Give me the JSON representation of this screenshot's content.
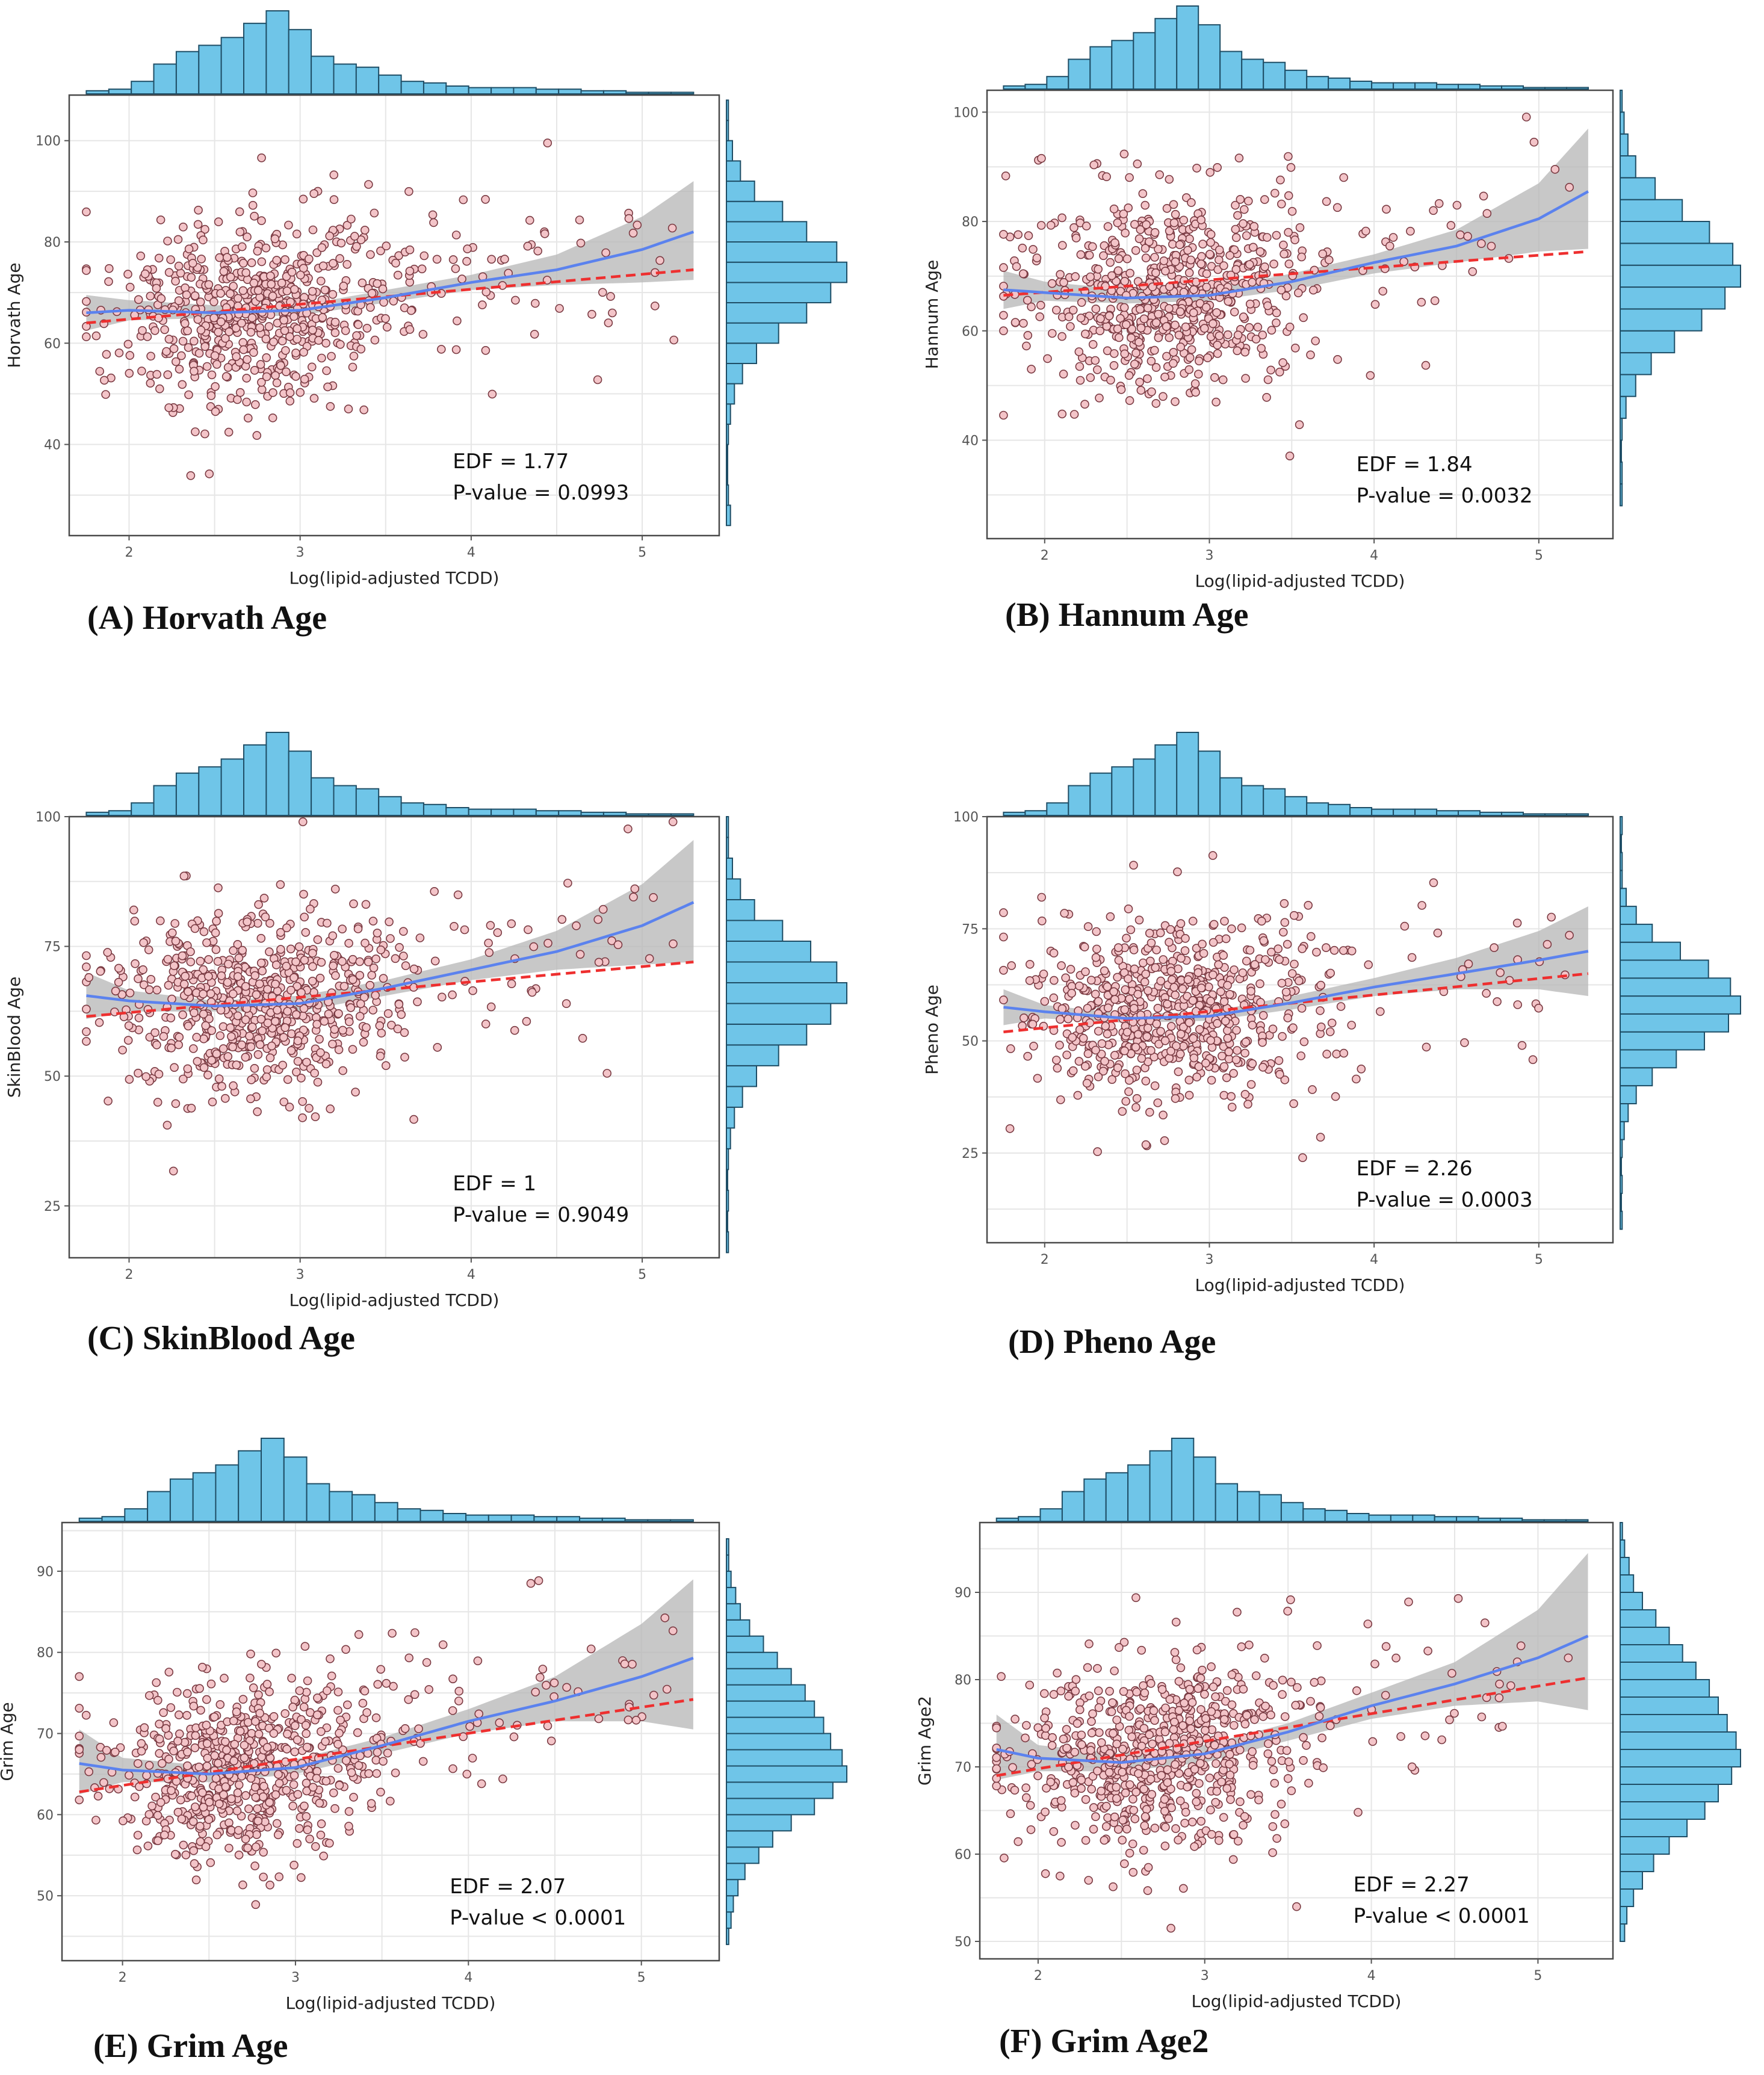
{
  "chart_data": [
    {
      "type": "scatter",
      "panel_title": "(A) Horvath Age",
      "xlabel": "Log(lipid-adjusted TCDD)",
      "ylabel": "Horvath Age",
      "xlim": [
        1.65,
        5.45
      ],
      "ylim": [
        22,
        109
      ],
      "xticks": [
        2,
        3,
        4,
        5
      ],
      "yticks": [
        40,
        60,
        80,
        100
      ],
      "annotation": [
        "EDF = 1.77",
        "P-value = 0.0993"
      ],
      "series": [
        {
          "name": "smooth (blue)",
          "x": [
            1.75,
            2.0,
            2.5,
            3.0,
            3.5,
            4.0,
            4.5,
            5.0,
            5.3
          ],
          "y": [
            66.0,
            66.5,
            66.0,
            66.5,
            69.0,
            72.0,
            74.5,
            78.5,
            82.0
          ]
        },
        {
          "name": "linear (red dashed)",
          "x": [
            1.75,
            5.3
          ],
          "y": [
            64.0,
            74.5
          ]
        },
        {
          "name": "confidence band",
          "x": [
            1.75,
            2.0,
            2.5,
            3.0,
            3.5,
            4.0,
            4.5,
            5.0,
            5.3
          ],
          "lower": [
            62.5,
            64.5,
            65.0,
            65.5,
            68.0,
            70.5,
            71.5,
            72.0,
            72.5
          ],
          "upper": [
            69.5,
            68.5,
            67.5,
            67.5,
            70.5,
            73.5,
            77.5,
            85.0,
            92.0
          ]
        }
      ],
      "x_histogram": [
        2,
        3,
        8,
        19,
        27,
        31,
        36,
        45,
        53,
        41,
        24,
        19,
        17,
        12,
        8,
        7,
        5,
        4,
        4,
        4,
        3,
        3,
        2,
        2,
        1,
        1,
        1
      ],
      "y_histogram": {
        "bins": [
          24,
          28,
          32,
          36,
          40,
          44,
          48,
          52,
          56,
          60,
          64,
          68,
          72,
          76,
          80,
          84,
          88,
          92,
          96,
          100,
          104
        ],
        "counts": [
          2,
          1,
          0,
          0,
          1,
          2,
          4,
          8,
          15,
          26,
          40,
          52,
          60,
          55,
          40,
          28,
          14,
          7,
          3,
          1,
          1
        ]
      }
    },
    {
      "type": "scatter",
      "panel_title": "(B) Hannum Age",
      "xlabel": "Log(lipid-adjusted TCDD)",
      "ylabel": "Hannum Age",
      "xlim": [
        1.65,
        5.45
      ],
      "ylim": [
        22,
        104
      ],
      "xticks": [
        2,
        3,
        4,
        5
      ],
      "yticks": [
        40,
        60,
        80,
        100
      ],
      "annotation": [
        "EDF = 1.84",
        "P-value = 0.0032"
      ],
      "series": [
        {
          "name": "smooth (blue)",
          "x": [
            1.75,
            2.0,
            2.5,
            3.0,
            3.5,
            4.0,
            4.5,
            5.0,
            5.3
          ],
          "y": [
            67.5,
            67.0,
            66.0,
            66.5,
            69.0,
            72.5,
            75.5,
            80.5,
            85.5
          ]
        },
        {
          "name": "linear (red dashed)",
          "x": [
            1.75,
            5.3
          ],
          "y": [
            66.5,
            74.5
          ]
        },
        {
          "name": "confidence band",
          "x": [
            1.75,
            2.0,
            2.5,
            3.0,
            3.5,
            4.0,
            4.5,
            5.0,
            5.3
          ],
          "lower": [
            64.0,
            65.5,
            65.0,
            65.5,
            67.5,
            70.5,
            72.5,
            74.5,
            75.0
          ],
          "upper": [
            71.0,
            69.0,
            67.5,
            67.5,
            70.5,
            74.0,
            78.5,
            87.0,
            97.0
          ]
        }
      ],
      "x_histogram": [
        2,
        3,
        8,
        19,
        27,
        31,
        36,
        45,
        53,
        41,
        24,
        19,
        17,
        12,
        8,
        7,
        5,
        4,
        4,
        4,
        3,
        3,
        2,
        2,
        1,
        1,
        1
      ],
      "y_histogram": {
        "bins": [
          28,
          32,
          36,
          40,
          44,
          48,
          52,
          56,
          60,
          64,
          68,
          72,
          76,
          80,
          84,
          88,
          92,
          96,
          100
        ],
        "counts": [
          1,
          1,
          0,
          1,
          3,
          8,
          16,
          28,
          42,
          54,
          62,
          58,
          46,
          32,
          18,
          8,
          4,
          2,
          1
        ]
      }
    },
    {
      "type": "scatter",
      "panel_title": "(C) SkinBlood Age",
      "xlabel": "Log(lipid-adjusted TCDD)",
      "ylabel": "SkinBlood  Age",
      "xlim": [
        1.65,
        5.45
      ],
      "ylim": [
        15,
        100
      ],
      "xticks": [
        2,
        3,
        4,
        5
      ],
      "yticks": [
        25,
        50,
        75,
        100
      ],
      "annotation": [
        "EDF = 1",
        "P-value = 0.9049"
      ],
      "series": [
        {
          "name": "smooth (blue)",
          "x": [
            1.75,
            2.0,
            2.5,
            3.0,
            3.5,
            4.0,
            4.5,
            5.0,
            5.3
          ],
          "y": [
            65.5,
            64.5,
            63.5,
            64.0,
            67.0,
            70.5,
            74.0,
            79.0,
            83.5
          ]
        },
        {
          "name": "linear (red dashed)",
          "x": [
            1.75,
            5.3
          ],
          "y": [
            61.5,
            72.0
          ]
        },
        {
          "name": "confidence band",
          "x": [
            1.75,
            2.0,
            2.5,
            3.0,
            3.5,
            4.0,
            4.5,
            5.0,
            5.3
          ],
          "lower": [
            61.0,
            62.5,
            62.5,
            62.5,
            65.5,
            68.5,
            70.5,
            71.5,
            72.0
          ],
          "upper": [
            70.0,
            66.5,
            64.5,
            65.5,
            68.5,
            72.5,
            78.0,
            87.0,
            95.5
          ]
        }
      ],
      "x_histogram": [
        2,
        3,
        8,
        19,
        27,
        31,
        36,
        45,
        53,
        41,
        24,
        19,
        17,
        12,
        8,
        7,
        5,
        4,
        4,
        4,
        3,
        3,
        2,
        2,
        1,
        1,
        1
      ],
      "y_histogram": {
        "bins": [
          16,
          20,
          24,
          28,
          32,
          36,
          40,
          44,
          48,
          52,
          56,
          60,
          64,
          68,
          72,
          76,
          80,
          84,
          88,
          92,
          96
        ],
        "counts": [
          1,
          0,
          1,
          0,
          1,
          2,
          4,
          8,
          15,
          26,
          40,
          52,
          60,
          55,
          42,
          28,
          14,
          7,
          3,
          1,
          1
        ]
      }
    },
    {
      "type": "scatter",
      "panel_title": "(D) Pheno Age",
      "xlabel": "Log(lipid-adjusted TCDD)",
      "ylabel": "Pheno Age",
      "xlim": [
        1.65,
        5.45
      ],
      "ylim": [
        5,
        100
      ],
      "xticks": [
        2,
        3,
        4,
        5
      ],
      "yticks": [
        25,
        50,
        75,
        100
      ],
      "annotation": [
        "EDF = 2.26",
        "P-value = 0.0003"
      ],
      "series": [
        {
          "name": "smooth (blue)",
          "x": [
            1.75,
            2.0,
            2.5,
            3.0,
            3.5,
            4.0,
            4.5,
            5.0,
            5.3
          ],
          "y": [
            57.5,
            56.5,
            55.0,
            55.5,
            58.5,
            62.0,
            65.0,
            68.0,
            70.0
          ]
        },
        {
          "name": "linear (red dashed)",
          "x": [
            1.75,
            5.3
          ],
          "y": [
            52.0,
            65.0
          ]
        },
        {
          "name": "confidence band",
          "x": [
            1.75,
            2.0,
            2.5,
            3.0,
            3.5,
            4.0,
            4.5,
            5.0,
            5.3
          ],
          "lower": [
            53.5,
            55.0,
            54.0,
            54.5,
            57.0,
            60.0,
            61.5,
            61.5,
            60.0
          ],
          "upper": [
            61.5,
            58.0,
            56.0,
            56.5,
            60.0,
            64.0,
            68.5,
            74.5,
            80.0
          ]
        }
      ],
      "x_histogram": [
        2,
        3,
        8,
        19,
        27,
        31,
        36,
        45,
        53,
        41,
        24,
        19,
        17,
        12,
        8,
        7,
        5,
        4,
        4,
        4,
        3,
        3,
        2,
        2,
        1,
        1,
        1
      ],
      "y_histogram": {
        "bins": [
          8,
          12,
          16,
          20,
          24,
          28,
          32,
          36,
          40,
          44,
          48,
          52,
          56,
          60,
          64,
          68,
          72,
          76,
          80,
          84,
          88,
          92,
          96
        ],
        "counts": [
          1,
          0,
          1,
          0,
          1,
          2,
          4,
          8,
          16,
          28,
          42,
          54,
          60,
          55,
          44,
          30,
          16,
          8,
          3,
          1,
          1,
          0,
          1
        ]
      }
    },
    {
      "type": "scatter",
      "panel_title": "(E) Grim Age",
      "xlabel": "Log(lipid-adjusted TCDD)",
      "ylabel": "Grim Age",
      "xlim": [
        1.65,
        5.45
      ],
      "ylim": [
        42,
        96
      ],
      "xticks": [
        2,
        3,
        4,
        5
      ],
      "yticks": [
        50,
        60,
        70,
        80,
        90
      ],
      "annotation": [
        "EDF = 2.07",
        "P-value < 0.0001"
      ],
      "series": [
        {
          "name": "smooth (blue)",
          "x": [
            1.75,
            2.0,
            2.5,
            3.0,
            3.5,
            4.0,
            4.5,
            5.0,
            5.3
          ],
          "y": [
            66.3,
            65.5,
            65.0,
            65.8,
            68.5,
            71.5,
            74.0,
            77.0,
            79.3
          ]
        },
        {
          "name": "linear (red dashed)",
          "x": [
            1.75,
            5.3
          ],
          "y": [
            62.8,
            74.2
          ]
        },
        {
          "name": "confidence band",
          "x": [
            1.75,
            2.0,
            2.5,
            3.0,
            3.5,
            4.0,
            4.5,
            5.0,
            5.3
          ],
          "lower": [
            62.5,
            64.0,
            64.0,
            65.0,
            67.5,
            70.0,
            71.5,
            71.5,
            70.5
          ],
          "upper": [
            70.5,
            67.0,
            66.0,
            66.8,
            69.5,
            73.0,
            77.0,
            83.5,
            89.0
          ]
        }
      ],
      "x_histogram": [
        2,
        3,
        8,
        19,
        27,
        31,
        36,
        45,
        53,
        41,
        24,
        19,
        17,
        12,
        8,
        7,
        5,
        4,
        4,
        4,
        3,
        3,
        2,
        2,
        1,
        1,
        1
      ],
      "y_histogram": {
        "bins": [
          44,
          46,
          48,
          50,
          52,
          54,
          56,
          58,
          60,
          62,
          64,
          66,
          68,
          70,
          72,
          74,
          76,
          78,
          80,
          82,
          84,
          86,
          88,
          90,
          92
        ],
        "counts": [
          1,
          2,
          3,
          5,
          8,
          14,
          20,
          28,
          38,
          46,
          52,
          50,
          45,
          42,
          38,
          34,
          28,
          22,
          16,
          10,
          6,
          4,
          2,
          1,
          1
        ]
      }
    },
    {
      "type": "scatter",
      "panel_title": "(F) Grim Age2",
      "xlabel": "Log(lipid-adjusted TCDD)",
      "ylabel": "Grim Age2",
      "xlim": [
        1.65,
        5.45
      ],
      "ylim": [
        48,
        98
      ],
      "xticks": [
        2,
        3,
        4,
        5
      ],
      "yticks": [
        50,
        60,
        70,
        80,
        90
      ],
      "annotation": [
        "EDF = 2.27",
        "P-value < 0.0001"
      ],
      "series": [
        {
          "name": "smooth (blue)",
          "x": [
            1.75,
            2.0,
            2.5,
            3.0,
            3.5,
            4.0,
            4.5,
            5.0,
            5.3
          ],
          "y": [
            72.0,
            71.0,
            70.5,
            71.5,
            74.0,
            77.0,
            79.5,
            82.5,
            85.0
          ]
        },
        {
          "name": "linear (red dashed)",
          "x": [
            1.75,
            5.3
          ],
          "y": [
            69.0,
            80.2
          ]
        },
        {
          "name": "confidence band",
          "x": [
            1.75,
            2.0,
            2.5,
            3.0,
            3.5,
            4.0,
            4.5,
            5.0,
            5.3
          ],
          "lower": [
            68.5,
            69.5,
            69.5,
            70.5,
            73.0,
            75.5,
            77.0,
            77.5,
            76.5
          ],
          "upper": [
            76.0,
            72.5,
            71.5,
            72.5,
            75.0,
            78.5,
            82.0,
            88.0,
            94.5
          ]
        }
      ],
      "x_histogram": [
        2,
        3,
        8,
        19,
        27,
        31,
        36,
        45,
        53,
        41,
        24,
        19,
        17,
        12,
        8,
        7,
        5,
        4,
        4,
        4,
        3,
        3,
        2,
        2,
        1,
        1,
        1
      ],
      "y_histogram": {
        "bins": [
          50,
          52,
          54,
          56,
          58,
          60,
          62,
          64,
          66,
          68,
          70,
          72,
          74,
          76,
          78,
          80,
          82,
          84,
          86,
          88,
          90,
          92,
          94,
          96
        ],
        "counts": [
          2,
          3,
          6,
          10,
          15,
          22,
          30,
          38,
          44,
          50,
          54,
          52,
          48,
          44,
          40,
          34,
          28,
          22,
          16,
          10,
          6,
          4,
          2,
          1
        ]
      }
    }
  ],
  "colors": {
    "point_fill": "#f3c4c8",
    "point_stroke": "#7a3a42",
    "smooth_line": "#5b82ee",
    "linear_line": "#ee2f2f",
    "band": "#b5b5b5",
    "histogram_fill": "#6fc5e8",
    "histogram_stroke": "#1f4e66",
    "grid": "#e6e6e6"
  }
}
